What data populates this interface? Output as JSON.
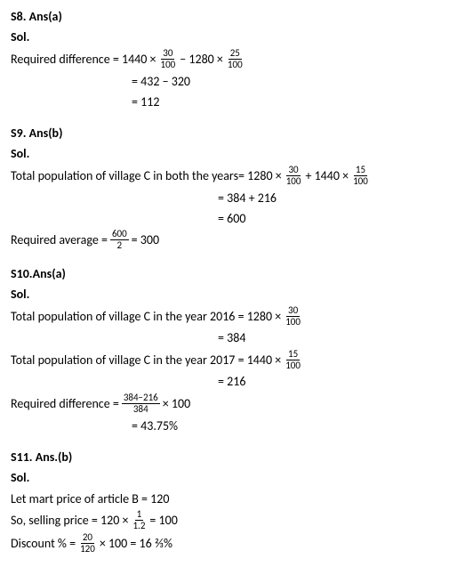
{
  "s8": {
    "heading": "S8. Ans(a)",
    "sol": "Sol.",
    "line1_prefix": "Required difference = 1440 ×",
    "frac1_num": "30",
    "frac1_den": "100",
    "line1_mid": " − 1280  ×",
    "frac2_num": "25",
    "frac2_den": "100",
    "line2": "= 432 − 320",
    "line3": "= 112"
  },
  "s9": {
    "heading": "S9. Ans(b)",
    "sol": "Sol.",
    "line1_prefix": "Total population of village C in both the years= 1280 ×",
    "frac1_num": "30",
    "frac1_den": "100",
    "line1_mid": " + 1440  ×",
    "frac2_num": "15",
    "frac2_den": "100",
    "line2": "= 384 + 216",
    "line3": "= 600",
    "avg_prefix": "Required average =",
    "avg_frac_num": "600",
    "avg_frac_den": "2",
    "avg_suffix": "  = 300"
  },
  "s10": {
    "heading": "S10.Ans(a)",
    "sol": "Sol.",
    "line1_prefix": "Total population of village C in the year 2016 = 1280 ×",
    "frac1_num": "30",
    "frac1_den": "100",
    "line2": "= 384",
    "line3_prefix": "Total population of village C in the year 2017 = 1440  ×",
    "frac3_num": "15",
    "frac3_den": "100",
    "line4": "= 216",
    "diff_prefix": "Required difference =",
    "diff_frac_num": "384−216",
    "diff_frac_den": "384",
    "diff_suffix": " × 100",
    "line6": "= 43.75%"
  },
  "s11": {
    "heading": "S11. Ans.(b)",
    "sol": "Sol.",
    "line1": "Let mart price of article B = 120",
    "line2_prefix": "So, selling price = 120 ×",
    "frac2_num": "1",
    "frac2_den": "1.2",
    "line2_suffix": " = 100",
    "disc_prefix": "Discount % =",
    "disc_frac_num": "20",
    "disc_frac_den": "120",
    "disc_suffix": " × 100 = 16 ⅔%"
  }
}
